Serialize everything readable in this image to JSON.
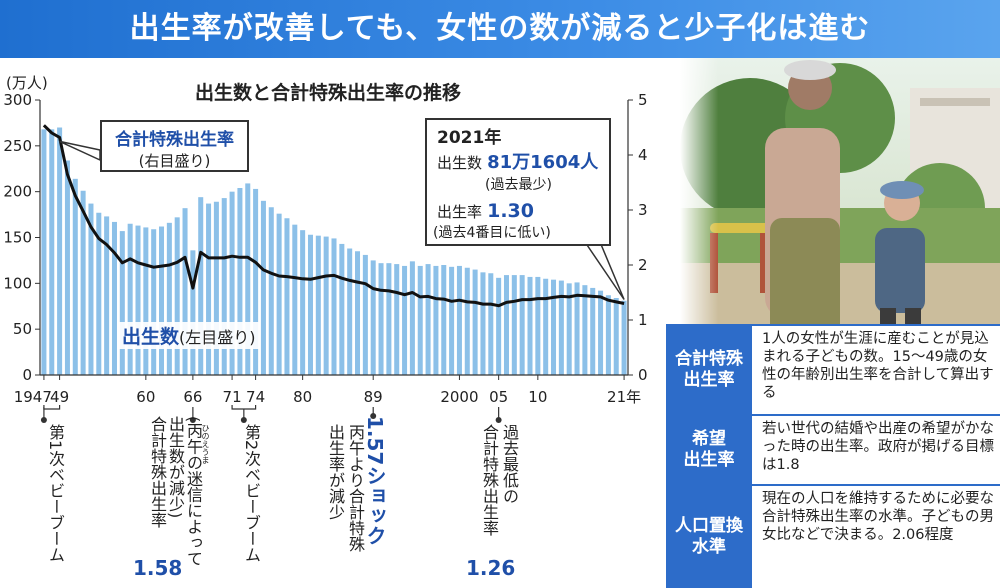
{
  "header": {
    "title": "出生率が改善しても、女性の数が減ると少子化は進む"
  },
  "chart_data": {
    "type": "bar",
    "title": "出生数と合計特殊出生率の推移",
    "left_unit": "(万人)",
    "x": [
      1947,
      1948,
      1949,
      1950,
      1951,
      1952,
      1953,
      1954,
      1955,
      1956,
      1957,
      1958,
      1959,
      1960,
      1961,
      1962,
      1963,
      1964,
      1965,
      1966,
      1967,
      1968,
      1969,
      1970,
      1971,
      1972,
      1973,
      1974,
      1975,
      1976,
      1977,
      1978,
      1979,
      1980,
      1981,
      1982,
      1983,
      1984,
      1985,
      1986,
      1987,
      1988,
      1989,
      1990,
      1991,
      1992,
      1993,
      1994,
      1995,
      1996,
      1997,
      1998,
      1999,
      2000,
      2001,
      2002,
      2003,
      2004,
      2005,
      2006,
      2007,
      2008,
      2009,
      2010,
      2011,
      2012,
      2013,
      2014,
      2015,
      2016,
      2017,
      2018,
      2019,
      2020,
      2021
    ],
    "series": [
      {
        "name": "出生数",
        "axis": "left",
        "values": [
          268,
          268,
          270,
          234,
          214,
          201,
          187,
          177,
          173,
          167,
          157,
          165,
          163,
          161,
          159,
          162,
          166,
          172,
          182,
          136,
          194,
          187,
          189,
          193,
          200,
          204,
          209,
          203,
          190,
          183,
          176,
          171,
          164,
          158,
          153,
          152,
          151,
          149,
          143,
          138,
          135,
          131,
          125,
          122,
          122,
          121,
          119,
          124,
          119,
          121,
          119,
          120,
          118,
          119,
          117,
          115,
          112,
          111,
          106,
          109,
          109,
          109,
          107,
          107,
          105,
          104,
          103,
          100,
          101,
          98,
          95,
          92,
          87,
          84,
          81
        ]
      },
      {
        "name": "合計特殊出生率",
        "axis": "right",
        "values": [
          4.54,
          4.4,
          4.32,
          3.65,
          3.26,
          2.98,
          2.69,
          2.48,
          2.37,
          2.22,
          2.04,
          2.11,
          2.04,
          2.0,
          1.96,
          1.98,
          2.0,
          2.05,
          2.14,
          1.58,
          2.23,
          2.13,
          2.13,
          2.13,
          2.16,
          2.14,
          2.14,
          2.05,
          1.91,
          1.85,
          1.8,
          1.79,
          1.77,
          1.75,
          1.74,
          1.77,
          1.8,
          1.81,
          1.76,
          1.72,
          1.69,
          1.66,
          1.57,
          1.54,
          1.53,
          1.5,
          1.46,
          1.5,
          1.42,
          1.43,
          1.39,
          1.38,
          1.34,
          1.36,
          1.33,
          1.32,
          1.29,
          1.29,
          1.26,
          1.32,
          1.34,
          1.37,
          1.37,
          1.39,
          1.39,
          1.41,
          1.43,
          1.42,
          1.45,
          1.44,
          1.43,
          1.42,
          1.36,
          1.33,
          1.3
        ]
      }
    ],
    "ylim_left": [
      0,
      300
    ],
    "yticks_left": [
      "0",
      "50",
      "100",
      "150",
      "200",
      "250",
      "300"
    ],
    "ylim_right": [
      0,
      5
    ],
    "yticks_right": [
      "0",
      "1",
      "2",
      "3",
      "4",
      "5"
    ],
    "xtick_labels": [
      {
        "year": 1947,
        "label": "1947"
      },
      {
        "year": 1949,
        "label": "49"
      },
      {
        "year": 1960,
        "label": "60"
      },
      {
        "year": 1966,
        "label": "66"
      },
      {
        "year": 1971,
        "label": "71"
      },
      {
        "year": 1974,
        "label": "74"
      },
      {
        "year": 1980,
        "label": "80"
      },
      {
        "year": 1989,
        "label": "89"
      },
      {
        "year": 2000,
        "label": "2000"
      },
      {
        "year": 2005,
        "label": "05"
      },
      {
        "year": 2010,
        "label": "10"
      },
      {
        "year": 2021,
        "label": "21年"
      }
    ],
    "bar_color": "#8cc0e8",
    "line_color": "#111111"
  },
  "labels": {
    "rate_label": "合計特殊出生率",
    "rate_sub": "(右目盛り)",
    "births_label": "出生数",
    "births_sub": "(左目盛り)"
  },
  "callout": {
    "year": "2021年",
    "births_caption": "出生数",
    "births_value": "81万1604人",
    "births_note": "(過去最少)",
    "rate_caption": "出生率",
    "rate_value": "1.30",
    "rate_note": "(過去4番目に低い)"
  },
  "annotations": {
    "boom1": "第1次ベビーブーム",
    "hinoe_ruby": "ひのえうま",
    "hinoe_col1": "(丙午の迷信によって",
    "hinoe_col2": "出生数が減少)",
    "hinoe_col3": "合計特殊出生率",
    "hinoe_value": "1.58",
    "boom2": "第2次ベビーブーム",
    "shock_title": "1.57ショック",
    "shock_col1": "丙午より合計特殊",
    "shock_col2": "出生率が減少",
    "low_col1": "過去最低の",
    "low_col2": "合計特殊出生率",
    "low_value": "1.26"
  },
  "glossary": [
    {
      "term": "合計特殊\n出生率",
      "definition": "1人の女性が生涯に産むことが見込まれる子どもの数。15〜49歳の女性の年齢別出生率を合計して算出する"
    },
    {
      "term": "希望\n出生率",
      "definition": "若い世代の結婚や出産の希望がかなった時の出生率。政府が掲げる目標は1.8"
    },
    {
      "term": "人口置換\n水準",
      "definition": "現在の人口を維持するために必要な合計特殊出生率の水準。子どもの男女比などで決まる。2.06程度"
    }
  ],
  "photo": {
    "icon": "mother-and-child-photo"
  }
}
